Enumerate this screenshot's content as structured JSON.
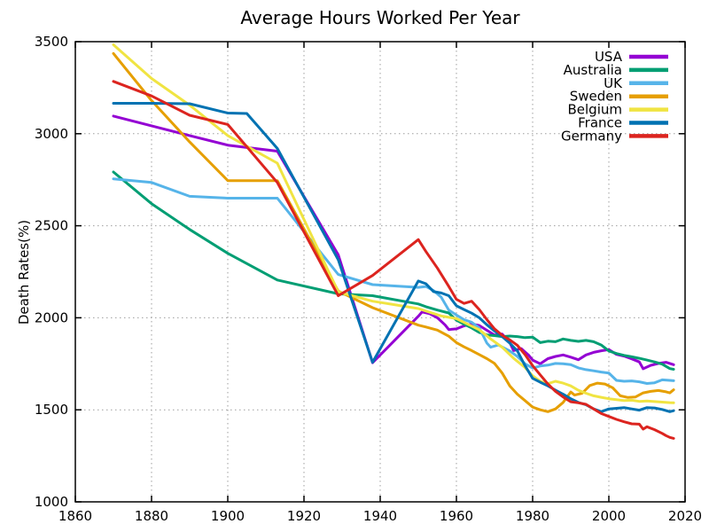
{
  "chart_data": {
    "type": "line",
    "title": "Average Hours Worked Per Year",
    "xlabel": "",
    "ylabel": "Death Rates(%)",
    "xlim": [
      1860,
      2020
    ],
    "ylim": [
      1000,
      3500
    ],
    "x_ticks": [
      1860,
      1880,
      1900,
      1920,
      1940,
      1960,
      1980,
      2000,
      2020
    ],
    "y_ticks": [
      1000,
      1500,
      2000,
      2500,
      3000,
      3500
    ],
    "grid": true,
    "grid_color": "#9e9e9e",
    "legend_position": "top-right-inside",
    "series": [
      {
        "name": "USA",
        "color": "#9400d3",
        "points": [
          [
            1870,
            3096
          ],
          [
            1880,
            3043
          ],
          [
            1890,
            2990
          ],
          [
            1900,
            2938
          ],
          [
            1913,
            2905
          ],
          [
            1929,
            2342
          ],
          [
            1938,
            1756
          ],
          [
            1950,
            2008
          ],
          [
            1951,
            2032
          ],
          [
            1953,
            2022
          ],
          [
            1955,
            2000
          ],
          [
            1957,
            1962
          ],
          [
            1958,
            1936
          ],
          [
            1960,
            1940
          ],
          [
            1962,
            1956
          ],
          [
            1964,
            1967
          ],
          [
            1966,
            1958
          ],
          [
            1968,
            1932
          ],
          [
            1970,
            1906
          ],
          [
            1972,
            1912
          ],
          [
            1974,
            1866
          ],
          [
            1975,
            1822
          ],
          [
            1977,
            1833
          ],
          [
            1979,
            1796
          ],
          [
            1980,
            1770
          ],
          [
            1982,
            1750
          ],
          [
            1984,
            1778
          ],
          [
            1986,
            1790
          ],
          [
            1988,
            1798
          ],
          [
            1990,
            1786
          ],
          [
            1992,
            1772
          ],
          [
            1994,
            1798
          ],
          [
            1996,
            1812
          ],
          [
            1998,
            1821
          ],
          [
            2000,
            1827
          ],
          [
            2002,
            1801
          ],
          [
            2004,
            1792
          ],
          [
            2006,
            1777
          ],
          [
            2008,
            1760
          ],
          [
            2009,
            1723
          ],
          [
            2011,
            1742
          ],
          [
            2013,
            1752
          ],
          [
            2015,
            1758
          ],
          [
            2017,
            1745
          ]
        ]
      },
      {
        "name": "Australia",
        "color": "#009e73",
        "points": [
          [
            1870,
            2792
          ],
          [
            1880,
            2620
          ],
          [
            1890,
            2480
          ],
          [
            1900,
            2350
          ],
          [
            1913,
            2205
          ],
          [
            1929,
            2130
          ],
          [
            1938,
            2120
          ],
          [
            1950,
            2075
          ],
          [
            1952,
            2060
          ],
          [
            1955,
            2042
          ],
          [
            1958,
            2026
          ],
          [
            1960,
            1987
          ],
          [
            1962,
            1965
          ],
          [
            1964,
            1945
          ],
          [
            1966,
            1920
          ],
          [
            1968,
            1907
          ],
          [
            1970,
            1903
          ],
          [
            1972,
            1898
          ],
          [
            1974,
            1901
          ],
          [
            1976,
            1898
          ],
          [
            1978,
            1892
          ],
          [
            1980,
            1895
          ],
          [
            1982,
            1865
          ],
          [
            1984,
            1873
          ],
          [
            1986,
            1870
          ],
          [
            1988,
            1885
          ],
          [
            1990,
            1877
          ],
          [
            1992,
            1872
          ],
          [
            1994,
            1877
          ],
          [
            1996,
            1870
          ],
          [
            1998,
            1852
          ],
          [
            2000,
            1820
          ],
          [
            2002,
            1806
          ],
          [
            2004,
            1796
          ],
          [
            2006,
            1788
          ],
          [
            2008,
            1780
          ],
          [
            2010,
            1770
          ],
          [
            2012,
            1760
          ],
          [
            2014,
            1748
          ],
          [
            2016,
            1724
          ],
          [
            2017,
            1720
          ]
        ]
      },
      {
        "name": "UK",
        "color": "#56b4e9",
        "points": [
          [
            1870,
            2755
          ],
          [
            1880,
            2735
          ],
          [
            1890,
            2660
          ],
          [
            1900,
            2650
          ],
          [
            1913,
            2650
          ],
          [
            1929,
            2235
          ],
          [
            1938,
            2180
          ],
          [
            1950,
            2165
          ],
          [
            1952,
            2170
          ],
          [
            1954,
            2148
          ],
          [
            1956,
            2112
          ],
          [
            1958,
            2042
          ],
          [
            1960,
            2015
          ],
          [
            1962,
            1990
          ],
          [
            1964,
            1976
          ],
          [
            1966,
            1945
          ],
          [
            1968,
            1862
          ],
          [
            1969,
            1840
          ],
          [
            1971,
            1852
          ],
          [
            1974,
            1820
          ],
          [
            1976,
            1790
          ],
          [
            1978,
            1750
          ],
          [
            1980,
            1727
          ],
          [
            1982,
            1738
          ],
          [
            1984,
            1743
          ],
          [
            1986,
            1752
          ],
          [
            1988,
            1750
          ],
          [
            1990,
            1745
          ],
          [
            1992,
            1728
          ],
          [
            1994,
            1718
          ],
          [
            1996,
            1712
          ],
          [
            1998,
            1705
          ],
          [
            2000,
            1700
          ],
          [
            2002,
            1660
          ],
          [
            2004,
            1655
          ],
          [
            2006,
            1657
          ],
          [
            2008,
            1652
          ],
          [
            2010,
            1643
          ],
          [
            2012,
            1647
          ],
          [
            2014,
            1663
          ],
          [
            2016,
            1660
          ],
          [
            2017,
            1658
          ]
        ]
      },
      {
        "name": "Sweden",
        "color": "#e69f00",
        "points": [
          [
            1870,
            3436
          ],
          [
            1880,
            3180
          ],
          [
            1890,
            2955
          ],
          [
            1900,
            2745
          ],
          [
            1913,
            2745
          ],
          [
            1929,
            2145
          ],
          [
            1938,
            2055
          ],
          [
            1950,
            1960
          ],
          [
            1952,
            1950
          ],
          [
            1955,
            1933
          ],
          [
            1958,
            1900
          ],
          [
            1960,
            1865
          ],
          [
            1962,
            1842
          ],
          [
            1964,
            1822
          ],
          [
            1966,
            1800
          ],
          [
            1968,
            1778
          ],
          [
            1970,
            1752
          ],
          [
            1972,
            1700
          ],
          [
            1974,
            1630
          ],
          [
            1976,
            1585
          ],
          [
            1978,
            1550
          ],
          [
            1980,
            1515
          ],
          [
            1982,
            1500
          ],
          [
            1984,
            1490
          ],
          [
            1986,
            1505
          ],
          [
            1988,
            1540
          ],
          [
            1990,
            1597
          ],
          [
            1991,
            1580
          ],
          [
            1993,
            1590
          ],
          [
            1995,
            1632
          ],
          [
            1997,
            1645
          ],
          [
            1999,
            1640
          ],
          [
            2001,
            1620
          ],
          [
            2003,
            1576
          ],
          [
            2005,
            1567
          ],
          [
            2007,
            1570
          ],
          [
            2009,
            1592
          ],
          [
            2011,
            1600
          ],
          [
            2013,
            1605
          ],
          [
            2015,
            1598
          ],
          [
            2016,
            1592
          ],
          [
            2017,
            1609
          ]
        ]
      },
      {
        "name": "Belgium",
        "color": "#f0e442",
        "points": [
          [
            1870,
            3483
          ],
          [
            1880,
            3300
          ],
          [
            1890,
            3155
          ],
          [
            1900,
            2990
          ],
          [
            1913,
            2840
          ],
          [
            1929,
            2140
          ],
          [
            1938,
            2090
          ],
          [
            1950,
            2050
          ],
          [
            1953,
            2030
          ],
          [
            1956,
            2010
          ],
          [
            1960,
            1995
          ],
          [
            1963,
            1965
          ],
          [
            1966,
            1935
          ],
          [
            1969,
            1885
          ],
          [
            1972,
            1840
          ],
          [
            1975,
            1780
          ],
          [
            1978,
            1730
          ],
          [
            1980,
            1685
          ],
          [
            1982,
            1655
          ],
          [
            1984,
            1642
          ],
          [
            1986,
            1655
          ],
          [
            1988,
            1645
          ],
          [
            1990,
            1630
          ],
          [
            1992,
            1606
          ],
          [
            1994,
            1590
          ],
          [
            1996,
            1576
          ],
          [
            1998,
            1568
          ],
          [
            2000,
            1560
          ],
          [
            2002,
            1555
          ],
          [
            2004,
            1550
          ],
          [
            2006,
            1552
          ],
          [
            2008,
            1546
          ],
          [
            2010,
            1548
          ],
          [
            2012,
            1545
          ],
          [
            2014,
            1542
          ],
          [
            2016,
            1539
          ],
          [
            2017,
            1538
          ]
        ]
      },
      {
        "name": "France",
        "color": "#0072b2",
        "points": [
          [
            1870,
            3165
          ],
          [
            1880,
            3165
          ],
          [
            1890,
            3163
          ],
          [
            1900,
            3112
          ],
          [
            1905,
            3110
          ],
          [
            1913,
            2920
          ],
          [
            1929,
            2315
          ],
          [
            1938,
            1758
          ],
          [
            1950,
            2200
          ],
          [
            1952,
            2185
          ],
          [
            1954,
            2142
          ],
          [
            1956,
            2135
          ],
          [
            1958,
            2120
          ],
          [
            1960,
            2065
          ],
          [
            1962,
            2045
          ],
          [
            1964,
            2025
          ],
          [
            1966,
            2000
          ],
          [
            1968,
            1962
          ],
          [
            1970,
            1928
          ],
          [
            1972,
            1898
          ],
          [
            1974,
            1862
          ],
          [
            1976,
            1820
          ],
          [
            1978,
            1740
          ],
          [
            1980,
            1671
          ],
          [
            1982,
            1650
          ],
          [
            1984,
            1630
          ],
          [
            1986,
            1607
          ],
          [
            1988,
            1585
          ],
          [
            1990,
            1560
          ],
          [
            1992,
            1540
          ],
          [
            1994,
            1528
          ],
          [
            1996,
            1505
          ],
          [
            1998,
            1490
          ],
          [
            2000,
            1505
          ],
          [
            2002,
            1508
          ],
          [
            2004,
            1512
          ],
          [
            2006,
            1505
          ],
          [
            2008,
            1498
          ],
          [
            2010,
            1512
          ],
          [
            2012,
            1510
          ],
          [
            2014,
            1502
          ],
          [
            2016,
            1490
          ],
          [
            2017,
            1495
          ]
        ]
      },
      {
        "name": "Germany",
        "color": "#dc241f",
        "points": [
          [
            1870,
            3284
          ],
          [
            1880,
            3205
          ],
          [
            1890,
            3100
          ],
          [
            1900,
            3050
          ],
          [
            1913,
            2735
          ],
          [
            1929,
            2120
          ],
          [
            1938,
            2230
          ],
          [
            1950,
            2425
          ],
          [
            1952,
            2360
          ],
          [
            1955,
            2270
          ],
          [
            1958,
            2170
          ],
          [
            1960,
            2100
          ],
          [
            1962,
            2078
          ],
          [
            1964,
            2090
          ],
          [
            1966,
            2045
          ],
          [
            1968,
            1990
          ],
          [
            1970,
            1940
          ],
          [
            1972,
            1905
          ],
          [
            1974,
            1880
          ],
          [
            1976,
            1850
          ],
          [
            1978,
            1800
          ],
          [
            1980,
            1740
          ],
          [
            1982,
            1690
          ],
          [
            1984,
            1640
          ],
          [
            1986,
            1600
          ],
          [
            1988,
            1570
          ],
          [
            1990,
            1544
          ],
          [
            1992,
            1538
          ],
          [
            1994,
            1530
          ],
          [
            1996,
            1505
          ],
          [
            1998,
            1480
          ],
          [
            2000,
            1464
          ],
          [
            2002,
            1448
          ],
          [
            2004,
            1435
          ],
          [
            2006,
            1424
          ],
          [
            2008,
            1422
          ],
          [
            2009,
            1395
          ],
          [
            2010,
            1408
          ],
          [
            2012,
            1392
          ],
          [
            2014,
            1372
          ],
          [
            2015,
            1360
          ],
          [
            2016,
            1350
          ],
          [
            2017,
            1345
          ]
        ]
      }
    ]
  }
}
